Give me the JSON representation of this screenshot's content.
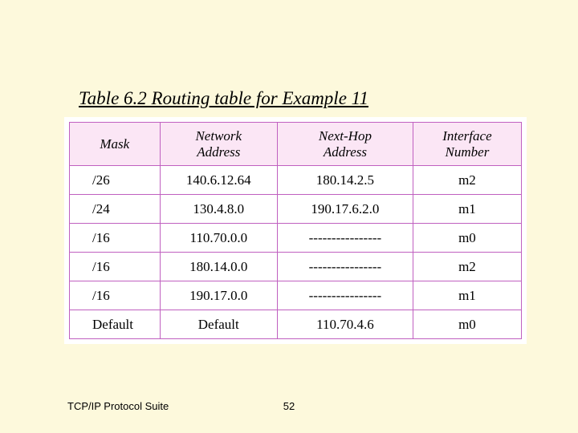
{
  "title": "Table 6.2  Routing table for Example 11",
  "footer_left": "TCP/IP Protocol Suite",
  "footer_center": "52",
  "table": {
    "type": "table",
    "background_color": "#ffffff",
    "border_color": "#c060c0",
    "header_bg": "#fbe6f5",
    "header_font_style": "italic",
    "column_widths_pct": [
      20,
      26,
      30,
      24
    ],
    "column_align": [
      "left",
      "center",
      "center",
      "center"
    ],
    "columns": [
      "Mask",
      "Network\nAddress",
      "Next-Hop\nAddress",
      "Interface\nNumber"
    ],
    "rows": [
      [
        "/26",
        "140.6.12.64",
        "180.14.2.5",
        "m2"
      ],
      [
        "/24",
        "130.4.8.0",
        "190.17.6.2.0",
        "m1"
      ],
      [
        "/16",
        "110.70.0.0",
        "----------------",
        "m0"
      ],
      [
        "/16",
        "180.14.0.0",
        "----------------",
        "m2"
      ],
      [
        "/16",
        "190.17.0.0",
        "----------------",
        "m1"
      ],
      [
        "Default",
        "Default",
        "110.70.4.6",
        "m0"
      ]
    ]
  },
  "slide_bg": "#fdf9dc",
  "title_fontsize_pt": 17,
  "body_fontsize_pt": 13
}
